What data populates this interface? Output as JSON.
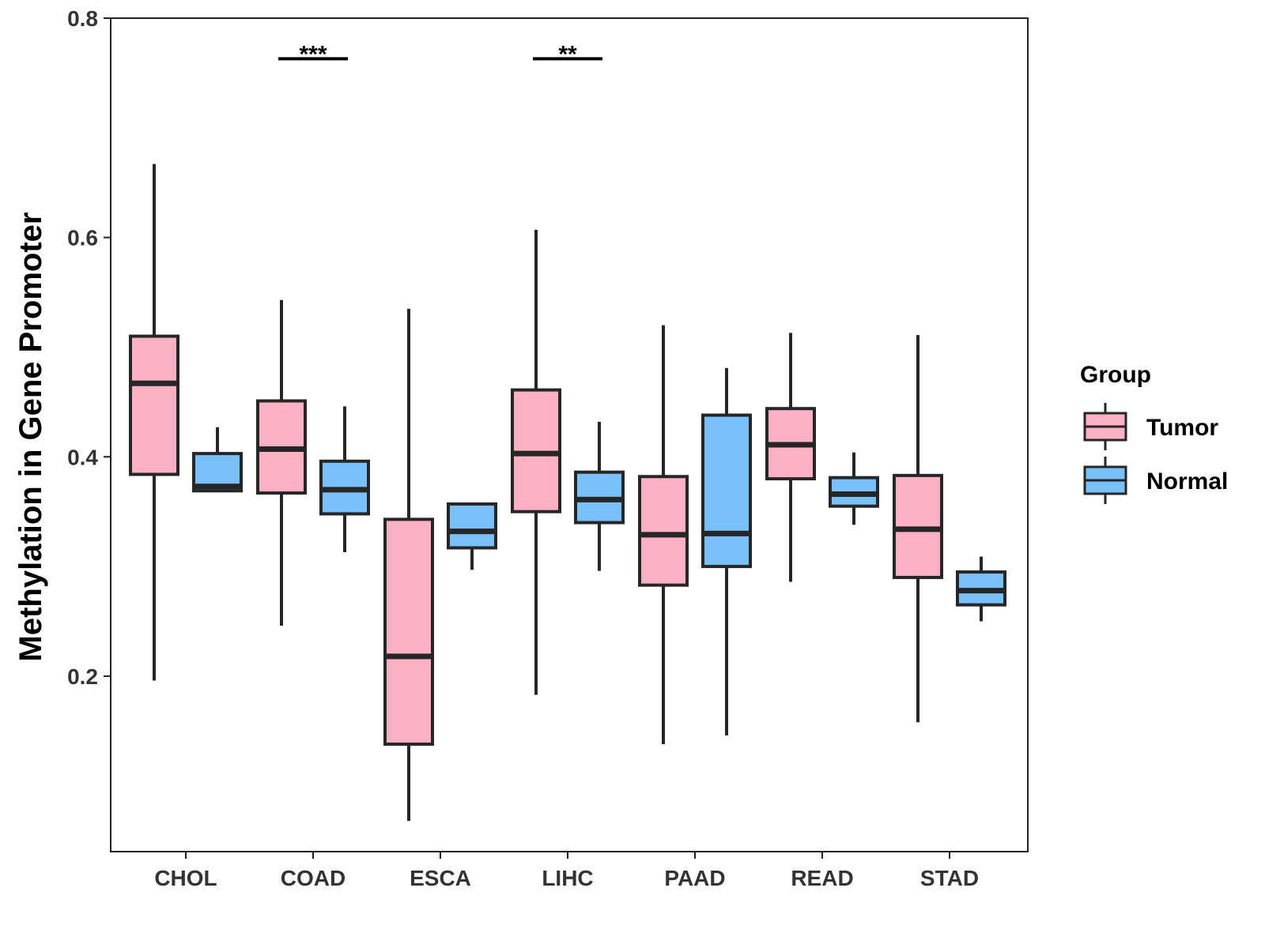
{
  "chart_data": {
    "type": "boxplot",
    "title": "",
    "xlabel": "",
    "ylabel": "Methylation in Gene Promoter",
    "ylim": [
      0.04,
      0.8
    ],
    "yticks": [
      0.2,
      0.4,
      0.6,
      0.8
    ],
    "ytick_labels": [
      "0.2",
      "0.4",
      "0.6",
      "0.8"
    ],
    "grid": false,
    "categories": [
      "CHOL",
      "COAD",
      "ESCA",
      "LIHC",
      "PAAD",
      "READ",
      "STAD"
    ],
    "legend": {
      "title": "Group",
      "position": "right",
      "entries": [
        {
          "name": "Tumor",
          "color": "#FBB0C3"
        },
        {
          "name": "Normal",
          "color": "#78C0F8"
        }
      ]
    },
    "colors": {
      "Tumor": "#FBB0C3",
      "Normal": "#78C0F8",
      "outline": "#262626"
    },
    "series": [
      {
        "name": "Tumor",
        "boxes": [
          {
            "category": "CHOL",
            "min": 0.196,
            "q1": 0.384,
            "median": 0.467,
            "q3": 0.51,
            "max": 0.667
          },
          {
            "category": "COAD",
            "min": 0.246,
            "q1": 0.367,
            "median": 0.407,
            "q3": 0.451,
            "max": 0.543
          },
          {
            "category": "ESCA",
            "min": 0.068,
            "q1": 0.138,
            "median": 0.218,
            "q3": 0.343,
            "max": 0.535
          },
          {
            "category": "LIHC",
            "min": 0.183,
            "q1": 0.35,
            "median": 0.403,
            "q3": 0.461,
            "max": 0.607
          },
          {
            "category": "PAAD",
            "min": 0.138,
            "q1": 0.283,
            "median": 0.329,
            "q3": 0.382,
            "max": 0.52
          },
          {
            "category": "READ",
            "min": 0.286,
            "q1": 0.38,
            "median": 0.411,
            "q3": 0.444,
            "max": 0.513
          },
          {
            "category": "STAD",
            "min": 0.158,
            "q1": 0.29,
            "median": 0.334,
            "q3": 0.383,
            "max": 0.511
          }
        ]
      },
      {
        "name": "Normal",
        "boxes": [
          {
            "category": "CHOL",
            "min": 0.369,
            "q1": 0.369,
            "median": 0.373,
            "q3": 0.403,
            "max": 0.427
          },
          {
            "category": "COAD",
            "min": 0.313,
            "q1": 0.348,
            "median": 0.37,
            "q3": 0.396,
            "max": 0.446
          },
          {
            "category": "ESCA",
            "min": 0.297,
            "q1": 0.317,
            "median": 0.332,
            "q3": 0.357,
            "max": 0.357
          },
          {
            "category": "LIHC",
            "min": 0.296,
            "q1": 0.34,
            "median": 0.361,
            "q3": 0.386,
            "max": 0.432
          },
          {
            "category": "PAAD",
            "min": 0.146,
            "q1": 0.3,
            "median": 0.33,
            "q3": 0.438,
            "max": 0.481
          },
          {
            "category": "READ",
            "min": 0.338,
            "q1": 0.355,
            "median": 0.366,
            "q3": 0.381,
            "max": 0.404
          },
          {
            "category": "STAD",
            "min": 0.25,
            "q1": 0.265,
            "median": 0.278,
            "q3": 0.295,
            "max": 0.309
          }
        ]
      }
    ],
    "annotations": [
      {
        "category": "COAD",
        "label": "***",
        "y": 0.763
      },
      {
        "category": "LIHC",
        "label": "**",
        "y": 0.763
      }
    ]
  }
}
